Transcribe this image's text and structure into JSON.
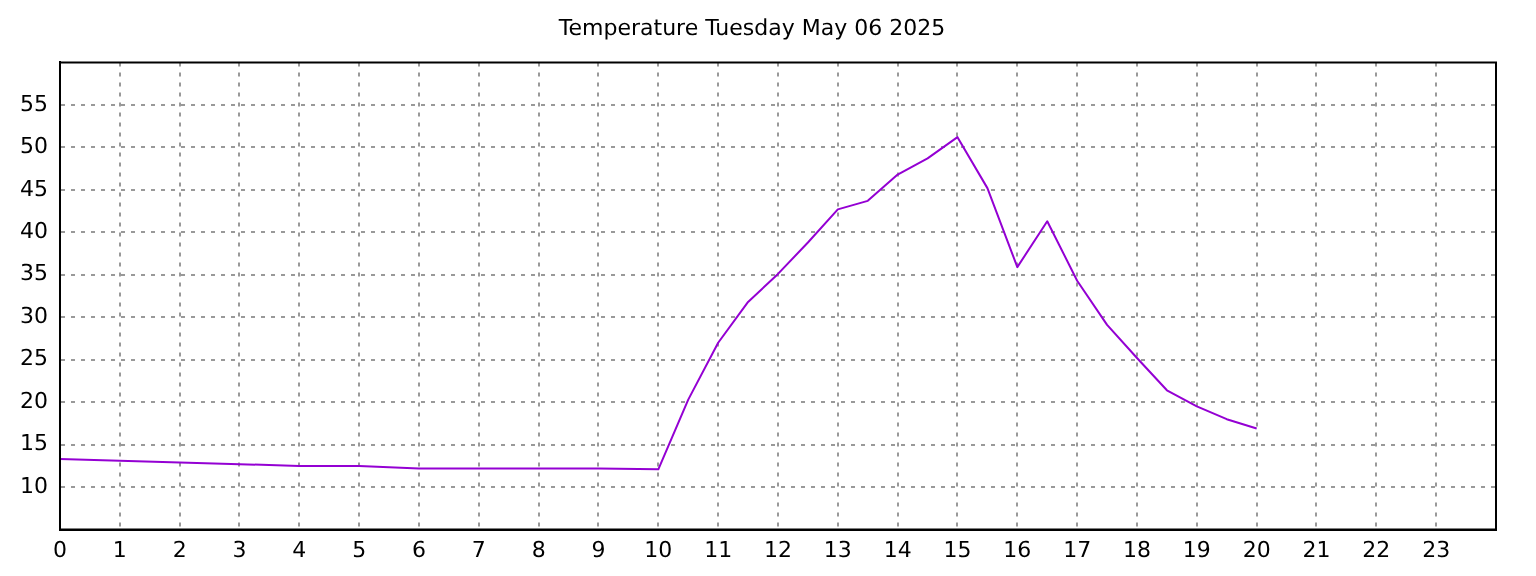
{
  "chart_data": {
    "type": "line",
    "title": "Temperature Tuesday May 06 2025",
    "x": [
      0,
      1,
      2,
      3,
      4,
      5,
      6,
      7,
      8,
      9,
      10,
      10.5,
      11,
      11.5,
      12,
      12.5,
      13,
      13.5,
      14,
      14.5,
      15,
      15.5,
      16,
      16.5,
      17,
      17.5,
      18,
      18.5,
      19,
      19.5,
      20
    ],
    "series": [
      {
        "color": "#9400d3",
        "values": [
          13.3,
          13.1,
          12.9,
          12.7,
          12.5,
          12.5,
          12.2,
          12.2,
          12.2,
          12.2,
          12.1,
          20.3,
          27.0,
          31.8,
          35.1,
          38.8,
          42.7,
          43.7,
          46.8,
          48.7,
          51.2,
          45.2,
          35.9,
          41.3,
          34.3,
          29.1,
          25.2,
          21.4,
          19.5,
          18.0,
          16.9
        ]
      }
    ],
    "xlim": [
      0,
      24
    ],
    "xticks": [
      0,
      1,
      2,
      3,
      4,
      5,
      6,
      7,
      8,
      9,
      10,
      11,
      12,
      13,
      14,
      15,
      16,
      17,
      18,
      19,
      20,
      21,
      22,
      23
    ],
    "ylim": [
      5,
      60
    ],
    "yticks": [
      10,
      15,
      20,
      25,
      30,
      35,
      40,
      45,
      50,
      55
    ],
    "grid": true,
    "legend": false,
    "marker": "none",
    "line_style": "solid"
  }
}
